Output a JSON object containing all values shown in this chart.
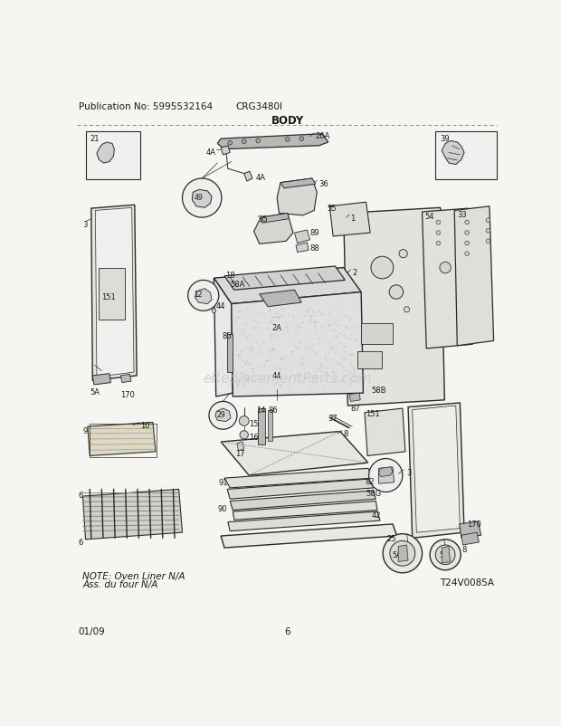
{
  "pub_no": "Publication No: 5995532164",
  "model": "CRG3480I",
  "title": "BODY",
  "date": "01/09",
  "page": "6",
  "diagram_id": "T24V0085A",
  "watermark": "eReplacementParts.com",
  "note_line1": "NOTE: Oven Liner N/A",
  "note_line2": "Ass. du four N/A",
  "bg_color": "#f5f5f2",
  "line_color": "#2a2a2a",
  "text_color": "#1a1a1a",
  "gray1": "#b8b8b8",
  "gray2": "#d0d0d0",
  "gray3": "#e8e8e8",
  "dot_color": "#aaaaaa"
}
